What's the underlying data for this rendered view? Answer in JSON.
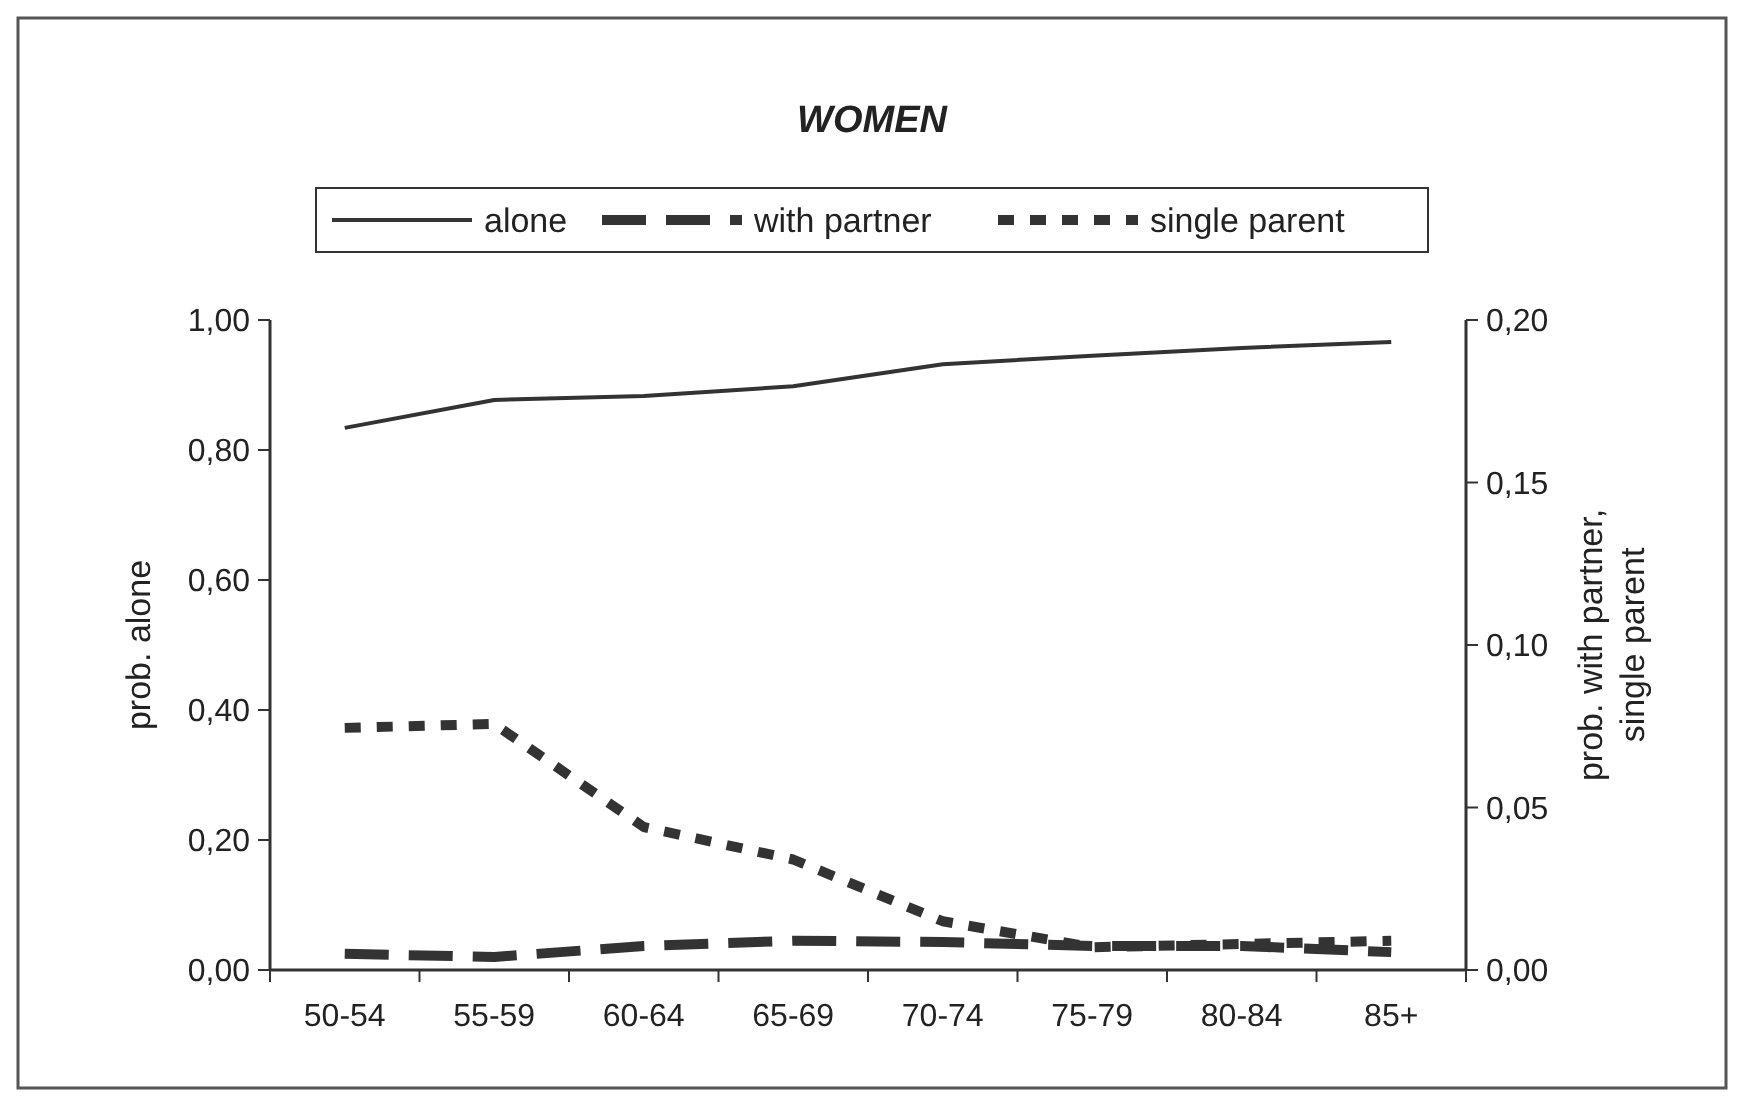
{
  "chart_data": {
    "type": "line",
    "title": "WOMEN",
    "ylabel": "prob. alone",
    "y2label": "prob. with partner, single parent",
    "categories": [
      "50-54",
      "55-59",
      "60-64",
      "65-69",
      "70-74",
      "75-79",
      "80-84",
      "85+"
    ],
    "series": [
      {
        "name": "alone",
        "color": "#333333",
        "line_style": "solid",
        "values": [
          0.834,
          0.877,
          0.883,
          0.898,
          0.932,
          0.945,
          0.957,
          0.966
        ]
      },
      {
        "name": "with partner",
        "color": "#333333",
        "line_style": "dashed",
        "axis": "y2",
        "values": [
          0.005,
          0.004,
          0.0074,
          0.009,
          0.0086,
          0.0074,
          0.0074,
          0.0055
        ]
      },
      {
        "name": "single parent",
        "color": "#333333",
        "line_style": "dotted",
        "axis": "y2",
        "values": [
          0.0745,
          0.0757,
          0.044,
          0.034,
          0.015,
          0.007,
          0.008,
          0.009
        ]
      }
    ],
    "ylim": [
      0,
      1
    ],
    "yticks": [
      {
        "value": 0,
        "label": "0,00"
      },
      {
        "value": 0.2,
        "label": "0,20"
      },
      {
        "value": 0.4,
        "label": "0,40"
      },
      {
        "value": 0.6,
        "label": "0,60"
      },
      {
        "value": 0.8,
        "label": "0,80"
      },
      {
        "value": 1,
        "label": "1,00"
      }
    ],
    "y2lim": [
      0,
      0.2
    ],
    "y2ticks": [
      {
        "value": 0,
        "label": "0,00"
      },
      {
        "value": 0.05,
        "label": "0,05"
      },
      {
        "value": 0.1,
        "label": "0,10"
      },
      {
        "value": 0.15,
        "label": "0,15"
      },
      {
        "value": 0.2,
        "label": "0,20"
      }
    ],
    "legend": "top",
    "grid": false
  }
}
